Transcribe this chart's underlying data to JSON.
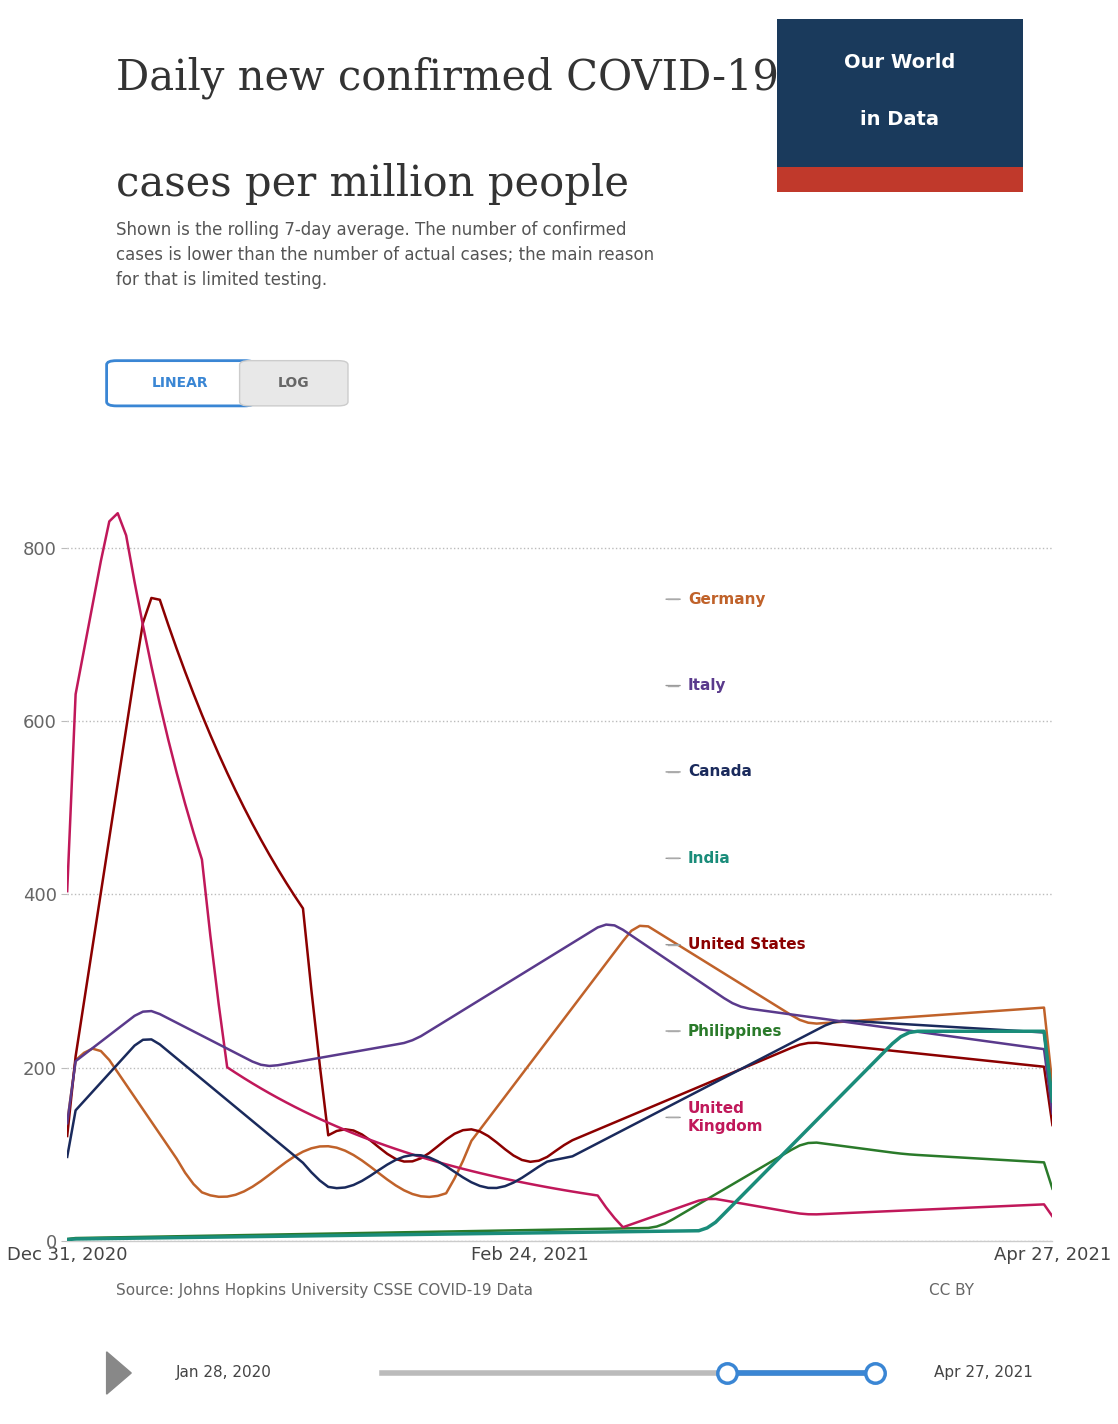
{
  "title_line1": "Daily new confirmed COVID-19",
  "title_line2": "cases per million people",
  "subtitle": "Shown is the rolling 7-day average. The number of confirmed\ncases is lower than the number of actual cases; the main reason\nfor that is limited testing.",
  "owid_text_line1": "Our World",
  "owid_text_line2": "in Data",
  "owid_bg": "#1a3a5c",
  "owid_stripe": "#c0392b",
  "x_labels": [
    "Dec 31, 2020",
    "Feb 24, 2021",
    "Apr 27, 2021"
  ],
  "y_ticks": [
    0,
    200,
    400,
    600,
    800
  ],
  "ylim": [
    0,
    950
  ],
  "source_text": "Source: Johns Hopkins University CSSE COVID-19 Data",
  "cc_text": "CC BY",
  "slider_left": "Jan 28, 2020",
  "slider_right": "Apr 27, 2021",
  "background_color": "#ffffff",
  "countries": [
    "United Kingdom",
    "United States",
    "Germany",
    "Italy",
    "Canada",
    "India",
    "Philippines"
  ],
  "colors": {
    "United Kingdom": "#c0185a",
    "United States": "#8b0000",
    "Germany": "#c0622a",
    "Italy": "#5a3a8c",
    "Canada": "#1a2a5c",
    "India": "#1a8c7a",
    "Philippines": "#2a7a2a"
  },
  "n_points": 118
}
